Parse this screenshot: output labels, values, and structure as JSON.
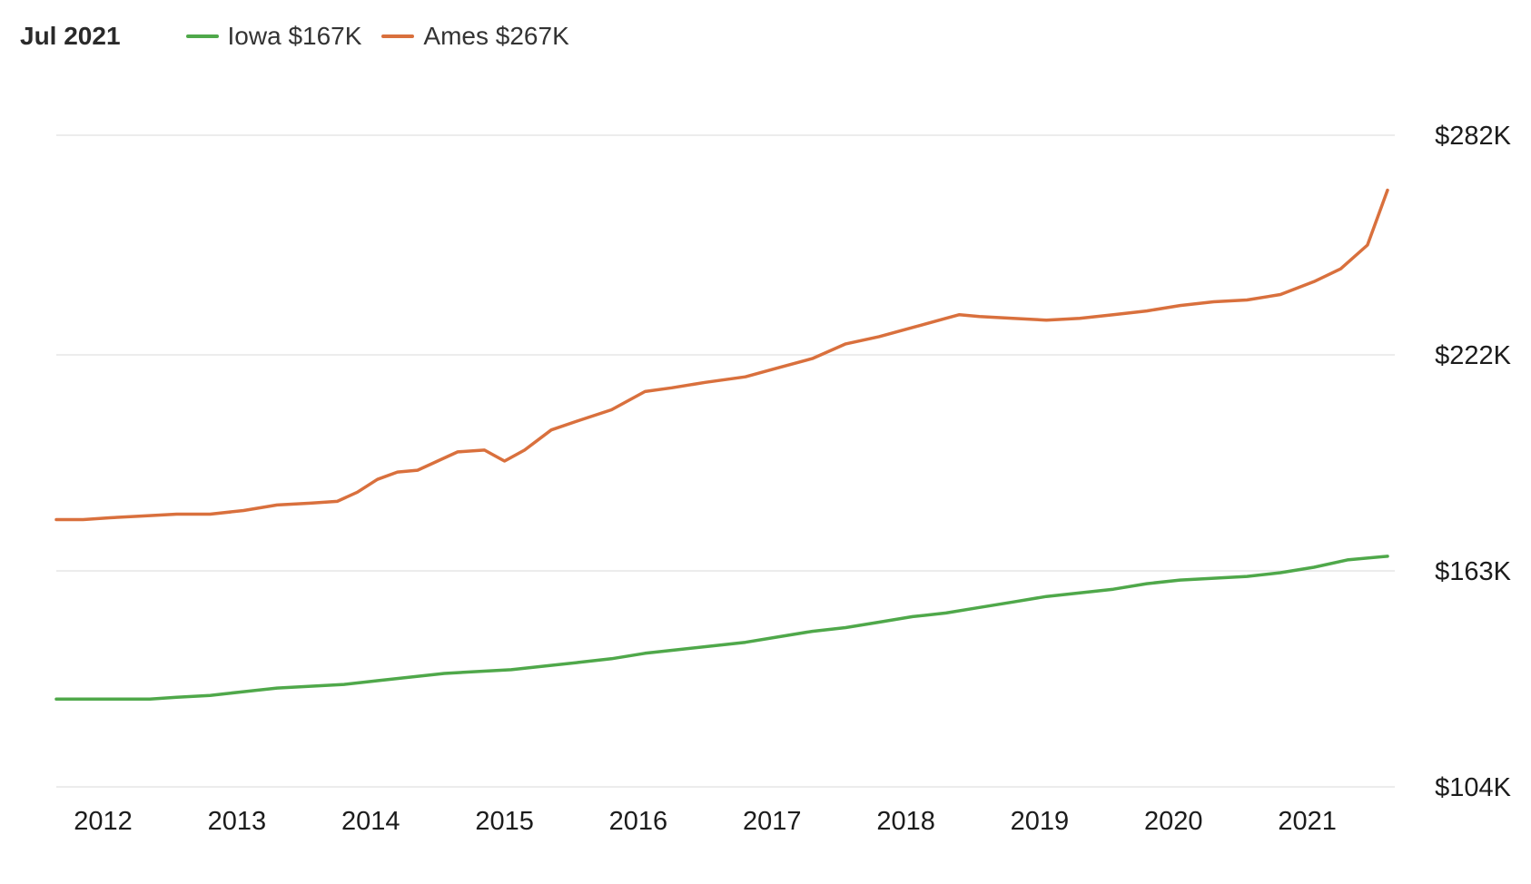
{
  "header": {
    "date_label": "Jul 2021"
  },
  "colors": {
    "iowa": "#4fa84a",
    "ames": "#d9703d",
    "grid": "#e6e6e6",
    "text": "#1c1c1c"
  },
  "chart_data": {
    "type": "line",
    "title": "",
    "xlabel": "",
    "ylabel": "",
    "x_ticks": [
      "2012",
      "2013",
      "2014",
      "2015",
      "2016",
      "2017",
      "2018",
      "2019",
      "2020",
      "2021"
    ],
    "y_ticks": [
      {
        "value": 104,
        "label": "$104K"
      },
      {
        "value": 163,
        "label": "$163K"
      },
      {
        "value": 222,
        "label": "$222K"
      },
      {
        "value": 282,
        "label": "$282K"
      }
    ],
    "ylim": [
      104,
      282
    ],
    "xlim": [
      2011.6,
      2021.55
    ],
    "grid": true,
    "legend_position": "top-left",
    "series": [
      {
        "key": "iowa",
        "name": "Iowa $167K",
        "points": [
          [
            2011.6,
            128
          ],
          [
            2012.0,
            128
          ],
          [
            2012.3,
            128
          ],
          [
            2012.5,
            128.5
          ],
          [
            2012.75,
            129
          ],
          [
            2013.0,
            130
          ],
          [
            2013.25,
            131
          ],
          [
            2013.5,
            131.5
          ],
          [
            2013.75,
            132
          ],
          [
            2014.0,
            133
          ],
          [
            2014.25,
            134
          ],
          [
            2014.5,
            135
          ],
          [
            2014.75,
            135.5
          ],
          [
            2015.0,
            136
          ],
          [
            2015.25,
            137
          ],
          [
            2015.5,
            138
          ],
          [
            2015.75,
            139
          ],
          [
            2016.0,
            140.5
          ],
          [
            2016.25,
            141.5
          ],
          [
            2016.5,
            142.5
          ],
          [
            2016.75,
            143.5
          ],
          [
            2017.0,
            145
          ],
          [
            2017.25,
            146.5
          ],
          [
            2017.5,
            147.5
          ],
          [
            2017.75,
            149
          ],
          [
            2018.0,
            150.5
          ],
          [
            2018.25,
            151.5
          ],
          [
            2018.5,
            153
          ],
          [
            2018.75,
            154.5
          ],
          [
            2019.0,
            156
          ],
          [
            2019.25,
            157
          ],
          [
            2019.5,
            158
          ],
          [
            2019.75,
            159.5
          ],
          [
            2020.0,
            160.5
          ],
          [
            2020.25,
            161
          ],
          [
            2020.5,
            161.5
          ],
          [
            2020.75,
            162.5
          ],
          [
            2021.0,
            164
          ],
          [
            2021.25,
            166
          ],
          [
            2021.55,
            167
          ]
        ]
      },
      {
        "key": "ames",
        "name": "Ames $267K",
        "points": [
          [
            2011.6,
            177
          ],
          [
            2011.8,
            177
          ],
          [
            2012.0,
            177.5
          ],
          [
            2012.25,
            178
          ],
          [
            2012.5,
            178.5
          ],
          [
            2012.75,
            178.5
          ],
          [
            2013.0,
            179.5
          ],
          [
            2013.25,
            181
          ],
          [
            2013.5,
            181.5
          ],
          [
            2013.7,
            182
          ],
          [
            2013.85,
            184.5
          ],
          [
            2014.0,
            188
          ],
          [
            2014.15,
            190
          ],
          [
            2014.3,
            190.5
          ],
          [
            2014.45,
            193
          ],
          [
            2014.6,
            195.5
          ],
          [
            2014.8,
            196
          ],
          [
            2014.95,
            193
          ],
          [
            2015.1,
            196
          ],
          [
            2015.3,
            201.5
          ],
          [
            2015.5,
            204
          ],
          [
            2015.75,
            207
          ],
          [
            2016.0,
            212
          ],
          [
            2016.2,
            213
          ],
          [
            2016.45,
            214.5
          ],
          [
            2016.75,
            216
          ],
          [
            2017.0,
            218.5
          ],
          [
            2017.25,
            221
          ],
          [
            2017.5,
            225
          ],
          [
            2017.75,
            227
          ],
          [
            2018.0,
            229.5
          ],
          [
            2018.25,
            232
          ],
          [
            2018.35,
            233
          ],
          [
            2018.5,
            232.5
          ],
          [
            2018.75,
            232
          ],
          [
            2019.0,
            231.5
          ],
          [
            2019.25,
            232
          ],
          [
            2019.5,
            233
          ],
          [
            2019.75,
            234
          ],
          [
            2020.0,
            235.5
          ],
          [
            2020.25,
            236.5
          ],
          [
            2020.5,
            237
          ],
          [
            2020.75,
            238.5
          ],
          [
            2021.0,
            242
          ],
          [
            2021.2,
            245.5
          ],
          [
            2021.4,
            252
          ],
          [
            2021.55,
            267
          ]
        ]
      }
    ]
  }
}
